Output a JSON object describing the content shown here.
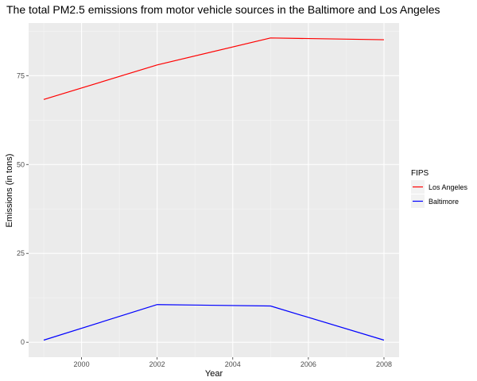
{
  "chart_data": {
    "type": "line",
    "title": "The total PM2.5 emissions from motor vehicle sources in the Baltimore and Los Angeles",
    "xlabel": "Year",
    "ylabel": "Emissions (in tons)",
    "x": [
      1999,
      2002,
      2005,
      2008
    ],
    "xlim": [
      1998.6,
      2008.4
    ],
    "ylim": [
      -4.2,
      89.8
    ],
    "x_ticks": [
      "2000",
      "2002",
      "2004",
      "2006",
      "2008"
    ],
    "y_ticks": [
      "0",
      "25",
      "50",
      "75"
    ],
    "grid": true,
    "legend": {
      "title": "FIPS",
      "position": "right"
    },
    "series": [
      {
        "name": "Los Angeles",
        "color": "#ff0000",
        "values": [
          68.3,
          78.0,
          85.6,
          85.1
        ]
      },
      {
        "name": "Baltimore",
        "color": "#0000ff",
        "values": [
          0.6,
          10.6,
          10.2,
          0.6
        ]
      }
    ]
  }
}
